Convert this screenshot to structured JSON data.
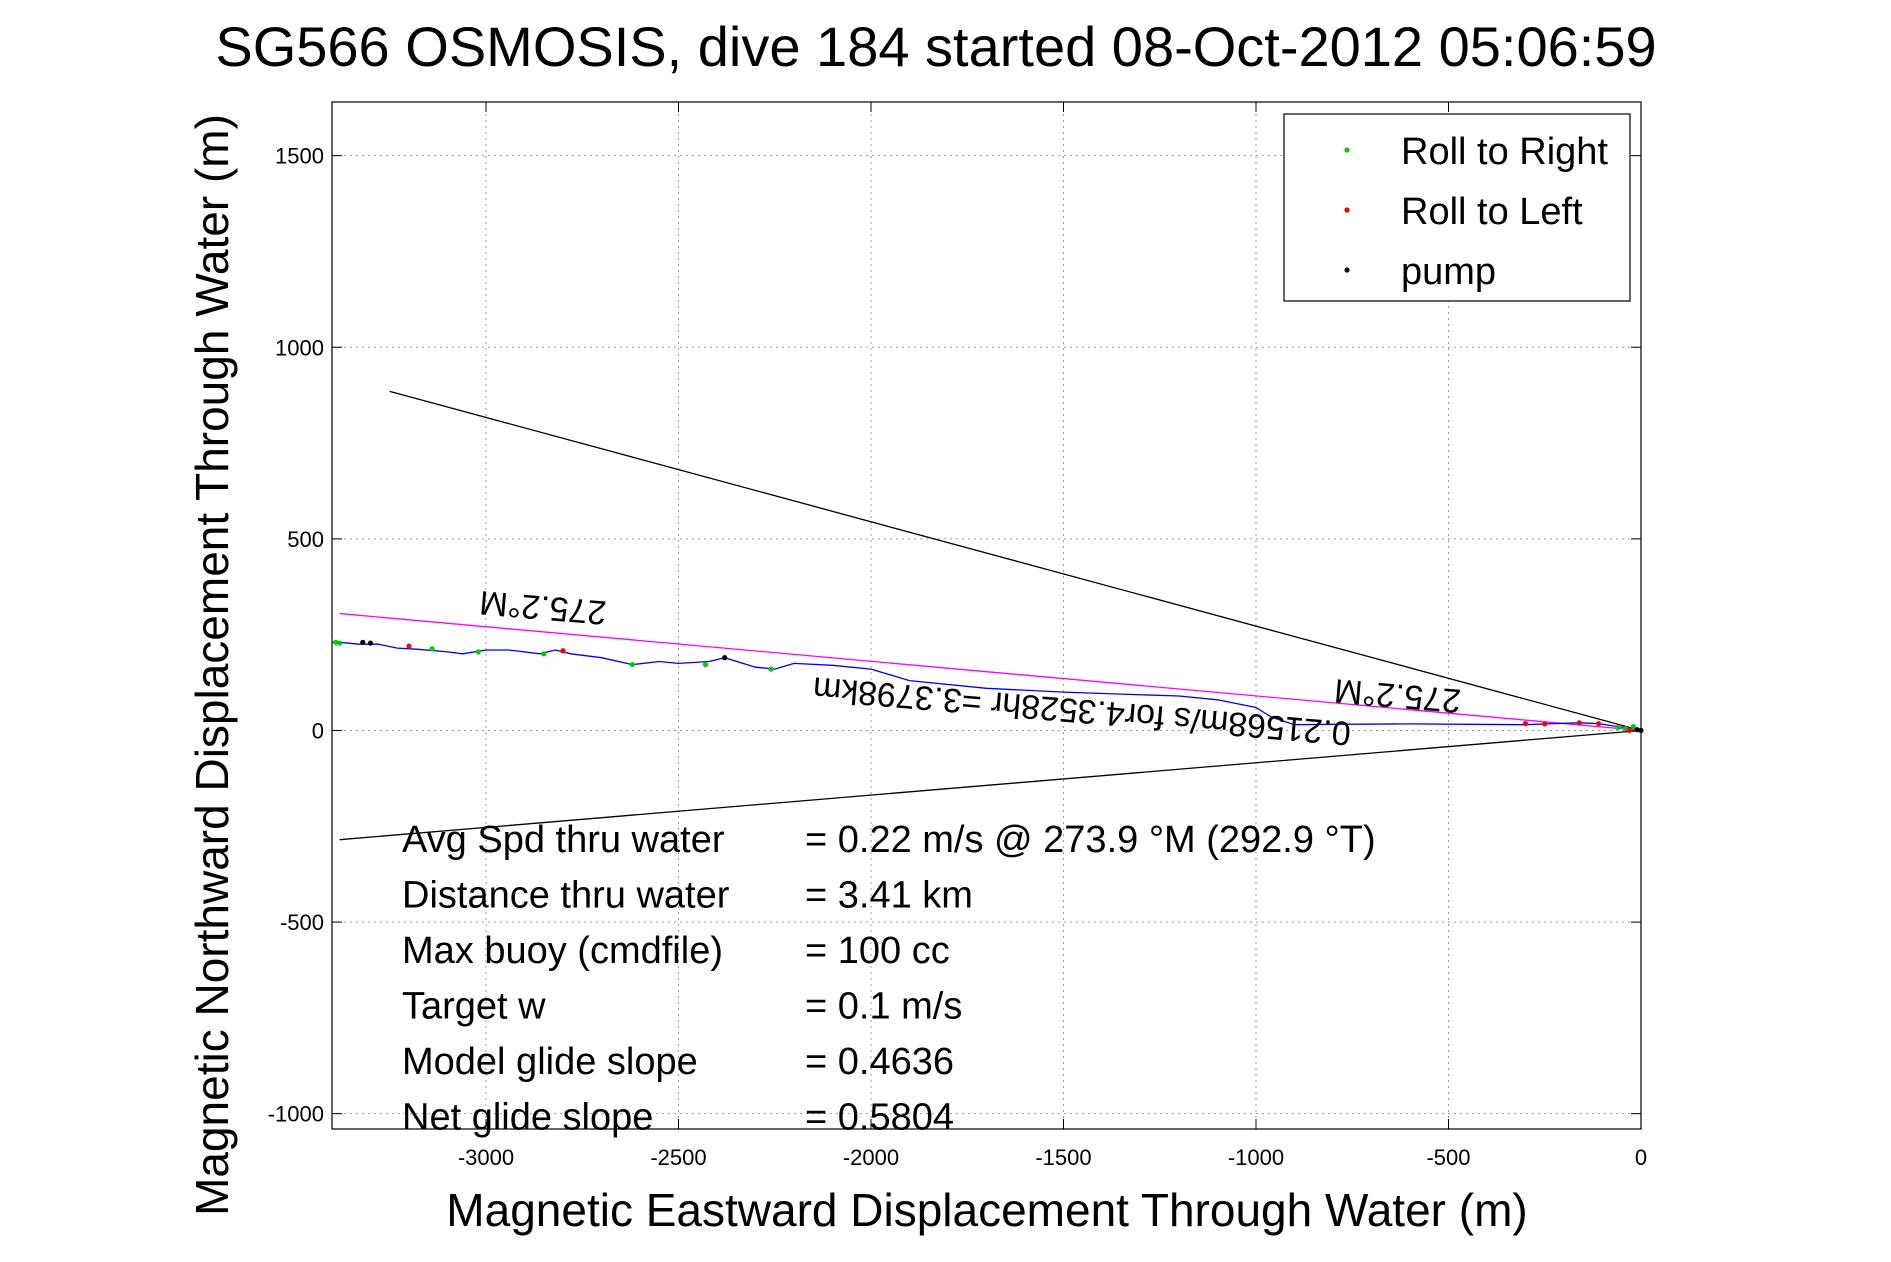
{
  "chart_data": {
    "type": "scatter",
    "title": "SG566 OSMOSIS, dive 184 started 08-Oct-2012 05:06:59",
    "xlabel": "Magnetic Eastward Displacement Through Water (m)",
    "ylabel": "Magnetic Northward Displacement Through Water (m)",
    "xlim": [
      -3400,
      0
    ],
    "ylim": [
      -1040,
      1640
    ],
    "xticks": [
      -3000,
      -2500,
      -2000,
      -1500,
      -1000,
      -500,
      0
    ],
    "xtick_labels": [
      "-3000",
      "-2500",
      "-2000",
      "-1500",
      "-1000",
      "-500",
      "0"
    ],
    "yticks": [
      -1000,
      -500,
      0,
      500,
      1000,
      1500
    ],
    "ytick_labels": [
      "-1000",
      "-500",
      "0",
      "500",
      "1000",
      "1500"
    ],
    "grid": true,
    "legend_position": "top-right",
    "legend": [
      {
        "label": "Roll to Right",
        "color": "#00cc00"
      },
      {
        "label": "Roll to Left",
        "color": "#ff0000"
      },
      {
        "label": "pump",
        "color": "#000000"
      }
    ],
    "track": {
      "color": "#0000ff",
      "x": [
        0,
        -20,
        -60,
        -110,
        -160,
        -230,
        -300,
        -450,
        -600,
        -800,
        -900,
        -960,
        -1000,
        -1100,
        -1200,
        -1350,
        -1500,
        -1700,
        -1900,
        -2000,
        -2100,
        -2200,
        -2250,
        -2300,
        -2380,
        -2420,
        -2500,
        -2550,
        -2620,
        -2700,
        -2780,
        -2820,
        -2860,
        -2940,
        -3000,
        -3060,
        -3100,
        -3180,
        -3230,
        -3280,
        -3330,
        -3380,
        -3400
      ],
      "y": [
        0,
        5,
        10,
        18,
        20,
        18,
        15,
        16,
        17,
        16,
        15,
        35,
        60,
        80,
        90,
        95,
        100,
        110,
        130,
        160,
        170,
        175,
        160,
        165,
        190,
        180,
        175,
        180,
        172,
        190,
        200,
        210,
        200,
        210,
        210,
        200,
        205,
        212,
        215,
        225,
        225,
        230,
        230
      ]
    },
    "roll_right": {
      "x": [
        -20,
        -40,
        -60,
        -2260,
        -2430,
        -2620,
        -2850,
        -3020,
        -3140,
        -3380,
        -3390
      ],
      "y": [
        10,
        5,
        8,
        160,
        172,
        172,
        200,
        205,
        213,
        228,
        230
      ]
    },
    "roll_left": {
      "x": [
        -30,
        -110,
        -160,
        -250,
        -300,
        -2800,
        -3200
      ],
      "y": [
        0,
        18,
        20,
        17,
        18,
        208,
        220
      ]
    },
    "pump": {
      "x": [
        0,
        -10,
        -2380,
        -3300,
        -3320
      ],
      "y": [
        0,
        2,
        190,
        228,
        230
      ]
    },
    "lines": [
      {
        "name": "",
        "color": "#000000",
        "x": [
          0,
          -3250
        ],
        "y": [
          0,
          885
        ]
      },
      {
        "name": "",
        "color": "#000000",
        "x": [
          0,
          -3380
        ],
        "y": [
          0,
          -285
        ]
      },
      {
        "name": "",
        "color": "#ff00ff",
        "x": [
          0,
          -3380
        ],
        "y": [
          0,
          305
        ]
      }
    ],
    "annotations": [
      {
        "text": "275.2°M",
        "x": -2850,
        "y": 350,
        "rotation": 184.8,
        "color": "#000000"
      },
      {
        "text": "275.2°M",
        "x": -630,
        "y": 120,
        "rotation": 184.8,
        "color": "#000000"
      },
      {
        "text": "0.21568m/s for4.3528hr =3.3798km",
        "x": -1450,
        "y": 80,
        "rotation": 184.8,
        "color": "#000000"
      }
    ],
    "stats": [
      {
        "label": "Avg Spd thru water",
        "value": "=  0.22 m/s @ 273.9 °M (292.9 °T)"
      },
      {
        "label": "Distance thru water",
        "value": "=  3.41 km"
      },
      {
        "label": "Max buoy (cmdfile)",
        "value": "= 100 cc"
      },
      {
        "label": "Target w",
        "value": "= 0.1 m/s"
      },
      {
        "label": "Model glide slope",
        "value": "= 0.4636"
      },
      {
        "label": "Net glide slope",
        "value": "= 0.5804"
      }
    ]
  }
}
